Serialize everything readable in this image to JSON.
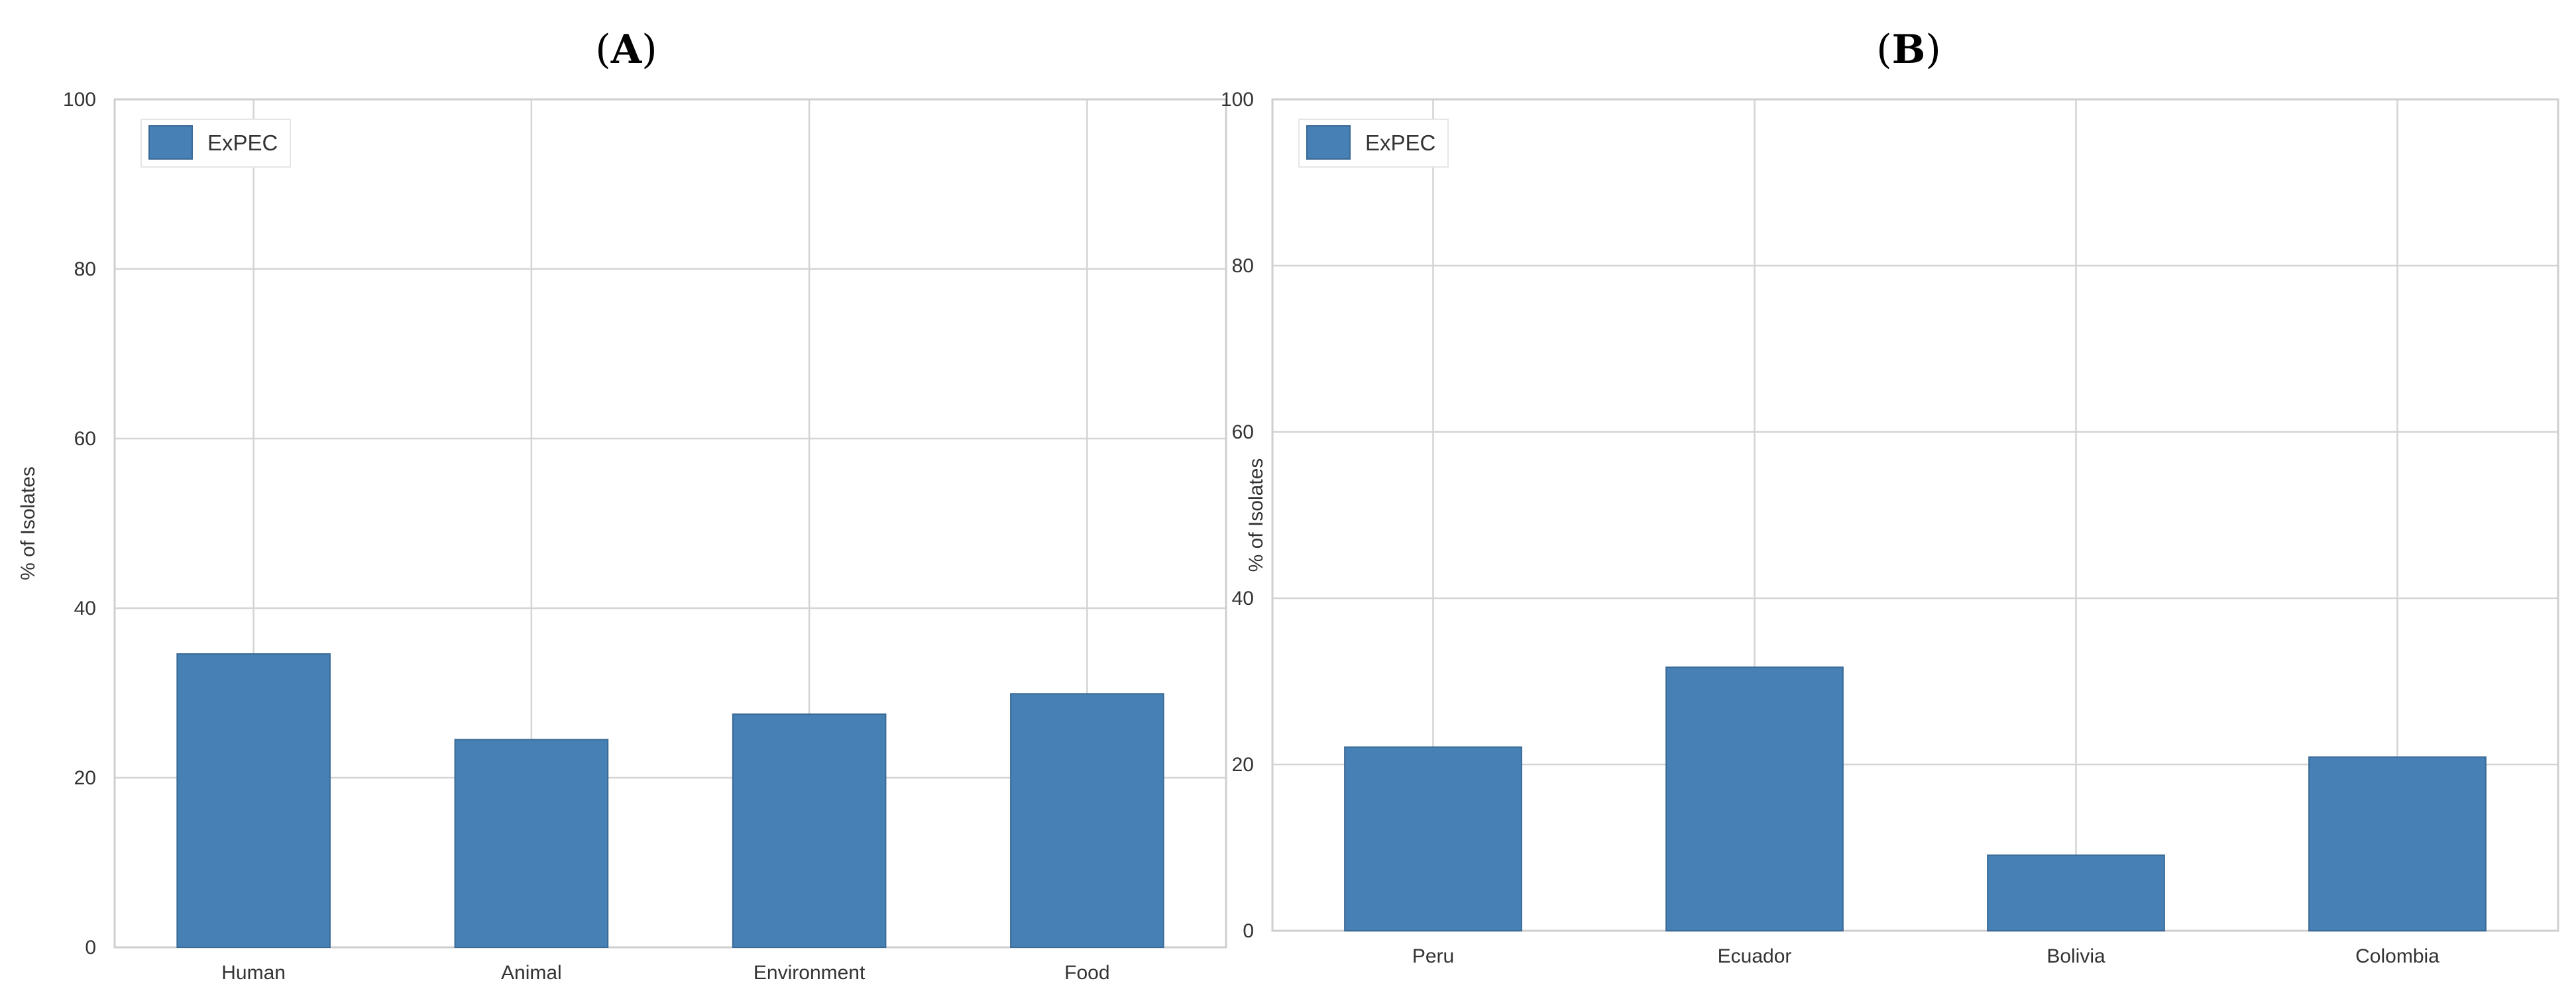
{
  "chart_data": [
    {
      "panel_label": "A",
      "type": "bar",
      "categories": [
        "Human",
        "Animal",
        "Environment",
        "Food"
      ],
      "series": [
        {
          "name": "ExPEC",
          "values": [
            34.6,
            24.5,
            27.5,
            29.9
          ],
          "color": "#4680b4"
        }
      ],
      "xlabel": "",
      "ylabel": "% of Isolates",
      "ylim": [
        0,
        100
      ],
      "yticks": [
        0,
        20,
        40,
        60,
        80,
        100
      ],
      "grid": true,
      "legend_position": "top-left"
    },
    {
      "panel_label": "B",
      "type": "bar",
      "categories": [
        "Peru",
        "Ecuador",
        "Bolivia",
        "Colombia"
      ],
      "series": [
        {
          "name": "ExPEC",
          "values": [
            22.1,
            31.7,
            9.1,
            20.9
          ],
          "color": "#4680b4"
        }
      ],
      "xlabel": "",
      "ylabel": "% of Isolates",
      "ylim": [
        0,
        100
      ],
      "yticks": [
        0,
        20,
        40,
        60,
        80,
        100
      ],
      "grid": true,
      "legend_position": "top-left"
    }
  ]
}
